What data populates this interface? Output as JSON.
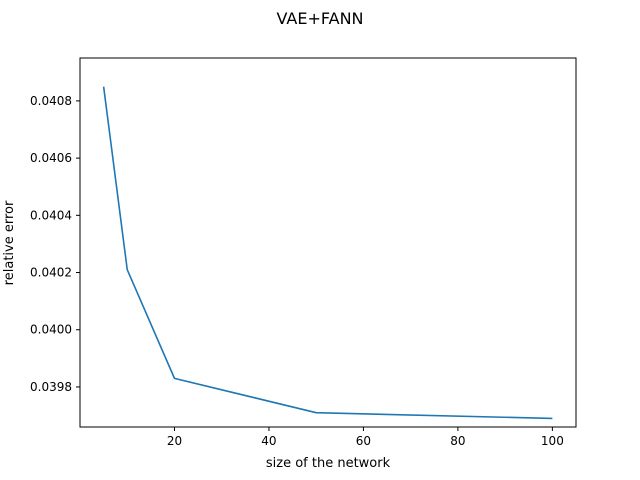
{
  "chart_data": {
    "type": "line",
    "title": "VAE+FANN",
    "xlabel": "size of the network",
    "ylabel": "relative error",
    "xlim": [
      0,
      105
    ],
    "ylim": [
      0.03966,
      0.04095
    ],
    "xticks": [
      20,
      40,
      60,
      80,
      100
    ],
    "xtick_labels": [
      "20",
      "40",
      "60",
      "80",
      "100"
    ],
    "yticks": [
      0.0398,
      0.04,
      0.0402,
      0.0404,
      0.0406,
      0.0408
    ],
    "ytick_labels": [
      "0.0398",
      "0.0400",
      "0.0402",
      "0.0404",
      "0.0406",
      "0.0408"
    ],
    "grid": false,
    "series": [
      {
        "color": "#1f77b4",
        "x": [
          5,
          10,
          20,
          50,
          100
        ],
        "y": [
          0.04085,
          0.04021,
          0.03983,
          0.03971,
          0.03969
        ]
      }
    ]
  }
}
